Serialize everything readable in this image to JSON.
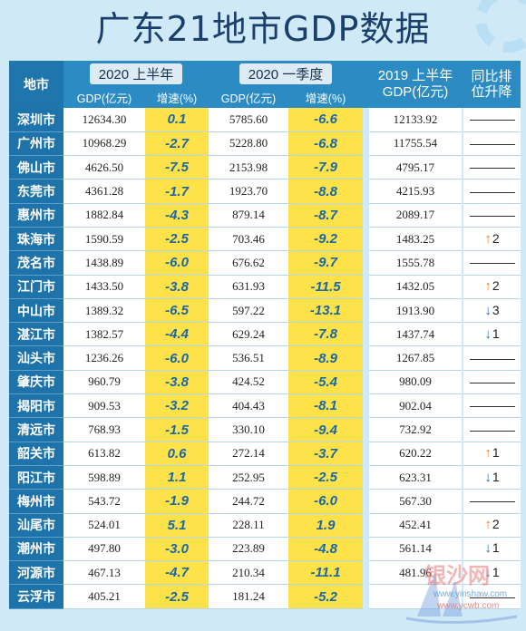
{
  "title": "广东21地市GDP数据",
  "header": {
    "city": "地市",
    "group_2020h1": "2020 上半年",
    "group_2020q1": "2020 一季度",
    "col_2019h1_line1": "2019 上半年",
    "col_2019h1_line2": "GDP(亿元)",
    "col_rank_line1": "同比排",
    "col_rank_line2": "位升降",
    "gdp": "GDP(亿元)",
    "growth": "增速(%)"
  },
  "rows": [
    {
      "city": "深圳市",
      "gdp_h1": "12634.30",
      "growth_h1": "0.1",
      "gdp_q1": "5785.60",
      "growth_q1": "-6.6",
      "gdp_2019": "12133.92",
      "rank": {
        "dir": "none",
        "n": ""
      }
    },
    {
      "city": "广州市",
      "gdp_h1": "10968.29",
      "growth_h1": "-2.7",
      "gdp_q1": "5228.80",
      "growth_q1": "-6.8",
      "gdp_2019": "11755.54",
      "rank": {
        "dir": "none",
        "n": ""
      }
    },
    {
      "city": "佛山市",
      "gdp_h1": "4626.50",
      "growth_h1": "-7.5",
      "gdp_q1": "2153.98",
      "growth_q1": "-7.9",
      "gdp_2019": "4795.17",
      "rank": {
        "dir": "none",
        "n": ""
      }
    },
    {
      "city": "东莞市",
      "gdp_h1": "4361.28",
      "growth_h1": "-1.7",
      "gdp_q1": "1923.70",
      "growth_q1": "-8.8",
      "gdp_2019": "4215.93",
      "rank": {
        "dir": "none",
        "n": ""
      }
    },
    {
      "city": "惠州市",
      "gdp_h1": "1882.84",
      "growth_h1": "-4.3",
      "gdp_q1": "879.14",
      "growth_q1": "-8.7",
      "gdp_2019": "2089.17",
      "rank": {
        "dir": "none",
        "n": ""
      }
    },
    {
      "city": "珠海市",
      "gdp_h1": "1590.59",
      "growth_h1": "-2.5",
      "gdp_q1": "703.46",
      "growth_q1": "-9.2",
      "gdp_2019": "1483.25",
      "rank": {
        "dir": "up",
        "n": "2"
      }
    },
    {
      "city": "茂名市",
      "gdp_h1": "1438.89",
      "growth_h1": "-6.0",
      "gdp_q1": "676.62",
      "growth_q1": "-9.7",
      "gdp_2019": "1555.78",
      "rank": {
        "dir": "none",
        "n": ""
      }
    },
    {
      "city": "江门市",
      "gdp_h1": "1433.50",
      "growth_h1": "-3.8",
      "gdp_q1": "631.93",
      "growth_q1": "-11.5",
      "gdp_2019": "1432.05",
      "rank": {
        "dir": "up",
        "n": "2"
      }
    },
    {
      "city": "中山市",
      "gdp_h1": "1389.32",
      "growth_h1": "-6.5",
      "gdp_q1": "597.22",
      "growth_q1": "-13.1",
      "gdp_2019": "1913.90",
      "rank": {
        "dir": "down",
        "n": "3"
      }
    },
    {
      "city": "湛江市",
      "gdp_h1": "1382.57",
      "growth_h1": "-4.4",
      "gdp_q1": "629.24",
      "growth_q1": "-7.8",
      "gdp_2019": "1437.74",
      "rank": {
        "dir": "down",
        "n": "1"
      }
    },
    {
      "city": "汕头市",
      "gdp_h1": "1236.26",
      "growth_h1": "-6.0",
      "gdp_q1": "536.51",
      "growth_q1": "-8.9",
      "gdp_2019": "1267.85",
      "rank": {
        "dir": "none",
        "n": ""
      }
    },
    {
      "city": "肇庆市",
      "gdp_h1": "960.79",
      "growth_h1": "-3.8",
      "gdp_q1": "424.52",
      "growth_q1": "-5.4",
      "gdp_2019": "980.09",
      "rank": {
        "dir": "none",
        "n": ""
      }
    },
    {
      "city": "揭阳市",
      "gdp_h1": "909.53",
      "growth_h1": "-3.2",
      "gdp_q1": "404.43",
      "growth_q1": "-8.1",
      "gdp_2019": "902.04",
      "rank": {
        "dir": "none",
        "n": ""
      }
    },
    {
      "city": "清远市",
      "gdp_h1": "768.93",
      "growth_h1": "-1.5",
      "gdp_q1": "330.10",
      "growth_q1": "-9.4",
      "gdp_2019": "732.92",
      "rank": {
        "dir": "none",
        "n": ""
      }
    },
    {
      "city": "韶关市",
      "gdp_h1": "613.82",
      "growth_h1": "0.6",
      "gdp_q1": "272.14",
      "growth_q1": "-3.7",
      "gdp_2019": "620.22",
      "rank": {
        "dir": "up",
        "n": "1"
      }
    },
    {
      "city": "阳江市",
      "gdp_h1": "598.89",
      "growth_h1": "1.1",
      "gdp_q1": "252.95",
      "growth_q1": "-2.5",
      "gdp_2019": "623.31",
      "rank": {
        "dir": "down",
        "n": "1"
      }
    },
    {
      "city": "梅州市",
      "gdp_h1": "543.72",
      "growth_h1": "-1.9",
      "gdp_q1": "244.72",
      "growth_q1": "-6.0",
      "gdp_2019": "567.30",
      "rank": {
        "dir": "none",
        "n": ""
      }
    },
    {
      "city": "汕尾市",
      "gdp_h1": "524.01",
      "growth_h1": "5.1",
      "gdp_q1": "228.11",
      "growth_q1": "1.9",
      "gdp_2019": "452.41",
      "rank": {
        "dir": "up",
        "n": "2"
      }
    },
    {
      "city": "潮州市",
      "gdp_h1": "497.80",
      "growth_h1": "-3.0",
      "gdp_q1": "223.89",
      "growth_q1": "-4.8",
      "gdp_2019": "561.14",
      "rank": {
        "dir": "down",
        "n": "1"
      }
    },
    {
      "city": "河源市",
      "gdp_h1": "467.13",
      "growth_h1": "-4.7",
      "gdp_q1": "210.34",
      "growth_q1": "-11.1",
      "gdp_2019": "481.96",
      "rank": {
        "dir": "down",
        "n": "1"
      }
    },
    {
      "city": "云浮市",
      "gdp_h1": "405.21",
      "growth_h1": "-2.5",
      "gdp_q1": "181.24",
      "growth_q1": "-5.2",
      "gdp_2019": "",
      "rank": {
        "dir": "none",
        "n": ""
      }
    }
  ],
  "watermark": {
    "text": "银沙网",
    "url1": "www.yinshaw.com",
    "url2": "www.ycwb.com"
  },
  "colors": {
    "header_blue": "#2d8bc3",
    "city_blue": "#1e73aa",
    "highlight_yellow": "#ffe24a",
    "growth_text": "#1967a5",
    "rank_up": "#f07d1f",
    "rank_down": "#1e6db0"
  }
}
